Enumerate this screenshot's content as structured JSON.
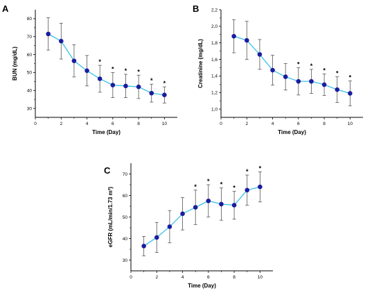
{
  "colors": {
    "line": "#39c0e8",
    "marker": "#1c1c9e",
    "error_bar": "#555555",
    "axis": "#000000"
  },
  "chart_data": [
    {
      "panel": "A",
      "type": "line",
      "xlabel": "Time (Day)",
      "ylabel": "BUN (mg/dL)",
      "xlim": [
        0,
        11
      ],
      "ylim": [
        25,
        85
      ],
      "xticks": [
        0,
        2,
        4,
        6,
        8,
        10
      ],
      "yticks": [
        30,
        40,
        50,
        60,
        70,
        80
      ],
      "ytick_labels": [
        "30",
        "40",
        "50",
        "60",
        "70",
        "80"
      ],
      "x": [
        1,
        2,
        3,
        4,
        5,
        6,
        7,
        8,
        9,
        10
      ],
      "y": [
        71.5,
        67.5,
        56.5,
        51.0,
        46.5,
        43.0,
        42.5,
        42.0,
        38.5,
        37.5
      ],
      "err": [
        9,
        10,
        9,
        8.5,
        7.5,
        7,
        6.5,
        6.5,
        5,
        4.5
      ],
      "significant": [
        false,
        false,
        false,
        false,
        true,
        true,
        true,
        true,
        true,
        true
      ],
      "star_label": "*"
    },
    {
      "panel": "B",
      "type": "line",
      "xlabel": "Time (Day)",
      "ylabel": "Creatinine (mg/dL)",
      "xlim": [
        0,
        11
      ],
      "ylim": [
        0.9,
        2.2
      ],
      "xticks": [
        0,
        2,
        4,
        6,
        8,
        10
      ],
      "yticks": [
        1.0,
        1.2,
        1.4,
        1.6,
        1.8,
        2.0,
        2.2
      ],
      "ytick_labels": [
        "1,0",
        "1,2",
        "1,4",
        "1,6",
        "1,8",
        "2,0",
        "2,2"
      ],
      "x": [
        1,
        2,
        3,
        4,
        5,
        6,
        7,
        8,
        9,
        10
      ],
      "y": [
        1.88,
        1.83,
        1.66,
        1.47,
        1.39,
        1.335,
        1.335,
        1.295,
        1.235,
        1.19
      ],
      "err": [
        0.2,
        0.23,
        0.18,
        0.18,
        0.16,
        0.165,
        0.145,
        0.13,
        0.155,
        0.15
      ],
      "significant": [
        false,
        false,
        false,
        false,
        false,
        true,
        true,
        true,
        true,
        true
      ],
      "star_label": "*"
    },
    {
      "panel": "C",
      "type": "line",
      "xlabel": "Time (Day)",
      "ylabel": "eGFR (mL/min/1.73 m²)",
      "xlim": [
        0,
        11
      ],
      "ylim": [
        25,
        75
      ],
      "xticks": [
        0,
        2,
        4,
        6,
        8,
        10
      ],
      "yticks": [
        30,
        40,
        50,
        60,
        70
      ],
      "ytick_labels": [
        "30",
        "40",
        "50",
        "60",
        "70"
      ],
      "x": [
        1,
        2,
        3,
        4,
        5,
        6,
        7,
        8,
        9,
        10
      ],
      "y": [
        36.5,
        40.5,
        45.5,
        51.5,
        54.5,
        57.5,
        56.0,
        55.5,
        62.5,
        64.0
      ],
      "err": [
        4.5,
        7,
        7.5,
        7.5,
        8,
        7.5,
        7.5,
        6.5,
        7,
        7
      ],
      "significant": [
        false,
        false,
        false,
        false,
        true,
        true,
        true,
        true,
        true,
        true
      ],
      "star_label": "*"
    }
  ]
}
